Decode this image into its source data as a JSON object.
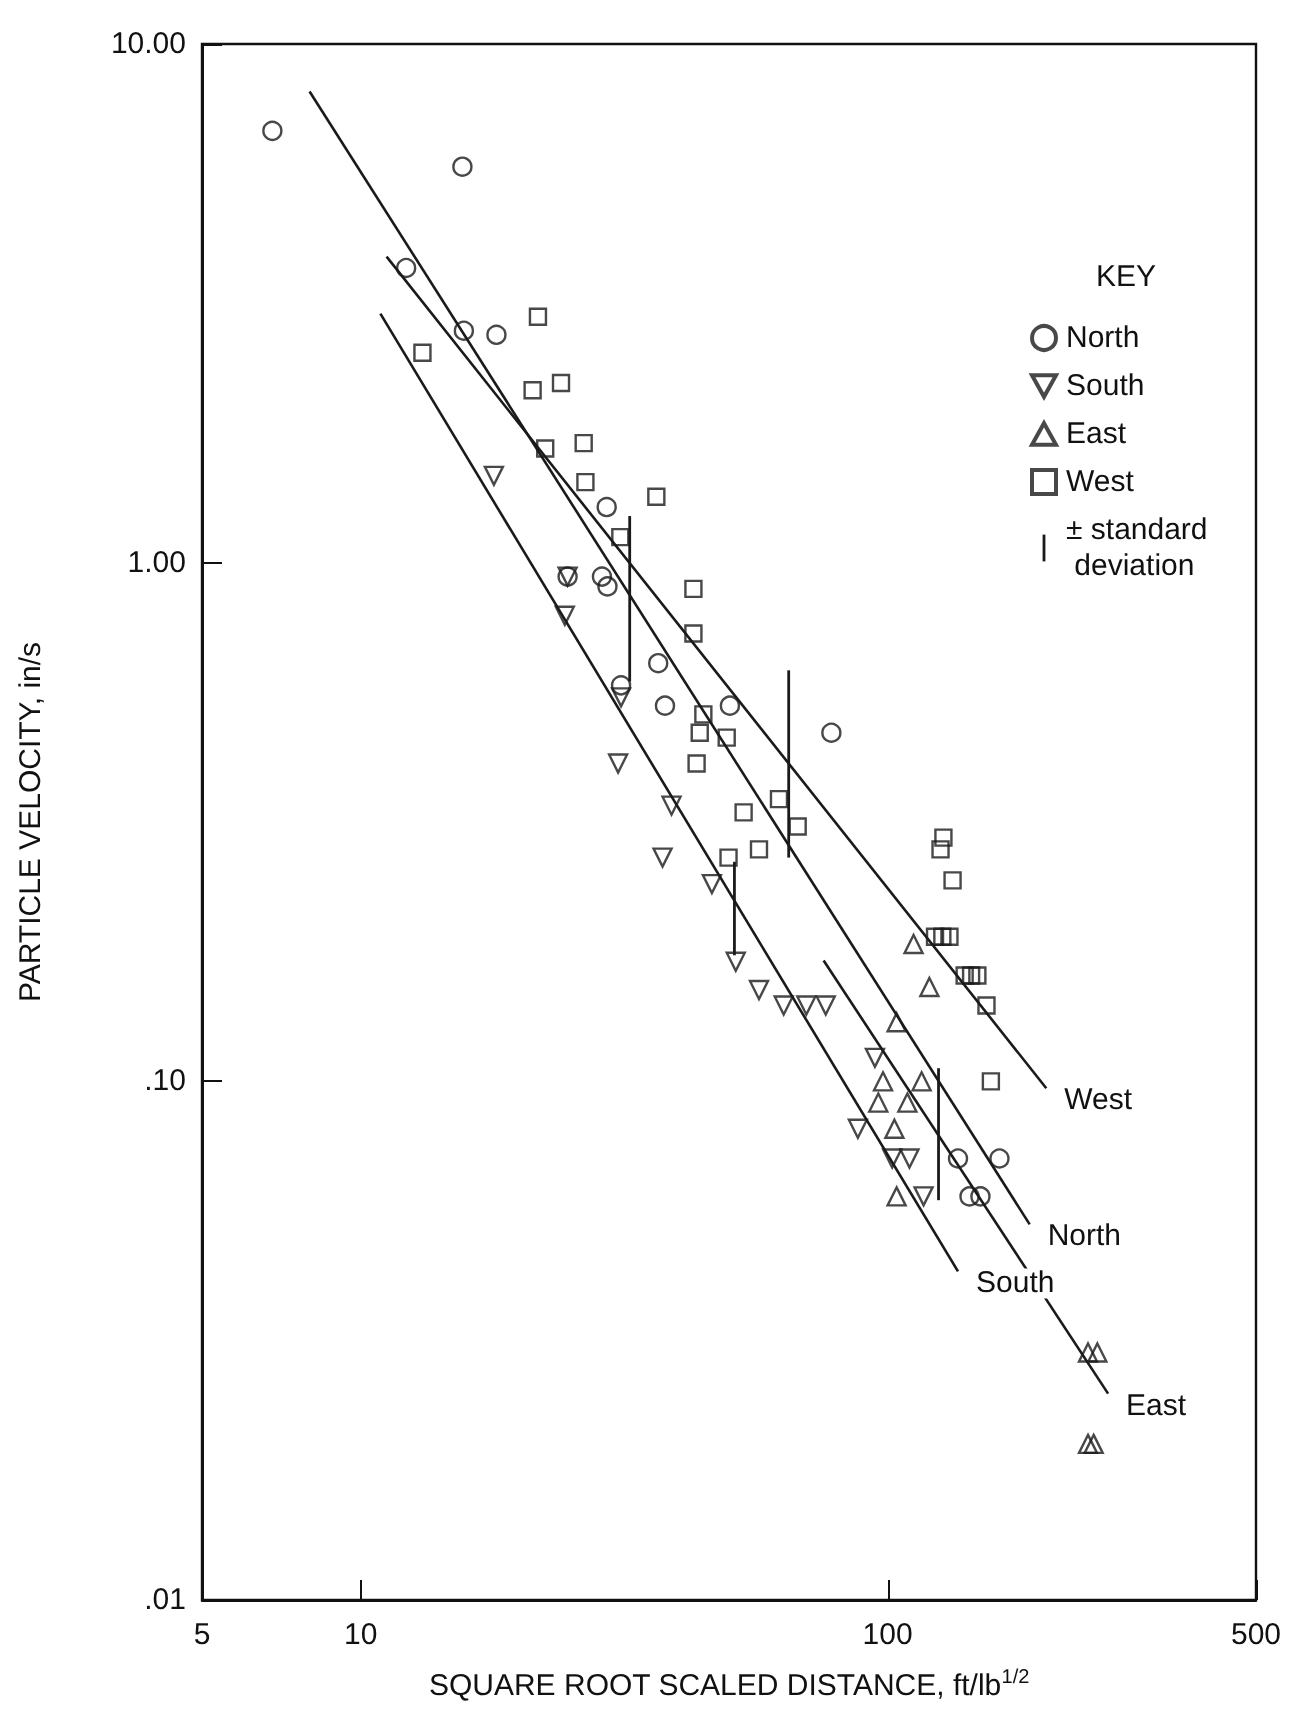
{
  "chart_data": {
    "type": "scatter",
    "xlabel": "SQUARE ROOT SCALED DISTANCE, ft/lb$^{1/2}$",
    "ylabel": "PARTICLE VELOCITY, in/s",
    "legend_title": "KEY",
    "legend": "top right",
    "log": "xy",
    "grid": false,
    "xlim": [
      5,
      500
    ],
    "xticks": [
      5,
      10,
      100,
      500
    ],
    "ylim": [
      0.01,
      10
    ],
    "yticks": [
      {
        "value": 0.01,
        "label": ".01"
      },
      {
        "value": 0.1,
        "label": ".10"
      },
      {
        "value": 1,
        "label": "1.00"
      },
      {
        "value": 10,
        "label": "10.00"
      }
    ],
    "series": [
      {
        "name": "North",
        "marker": "circle",
        "color": "#1a1a1a",
        "x": [
          6.8,
          15.6,
          12.2,
          15.7,
          18.1,
          29.3,
          24.7,
          28.7,
          29.4,
          36.7,
          31.2,
          37.8,
          50.2,
          78.2,
          136,
          163,
          143,
          150
        ],
        "values": [
          6.8,
          5.8,
          3.7,
          2.8,
          2.75,
          1.28,
          0.94,
          0.94,
          0.9,
          0.64,
          0.58,
          0.53,
          0.53,
          0.47,
          0.071,
          0.071,
          0.06,
          0.06
        ]
      },
      {
        "name": "South",
        "marker": "triangle-down",
        "color": "#1a1a1a",
        "x": [
          17.9,
          24.7,
          24.4,
          31.2,
          30.8,
          38.9,
          37.4,
          46.4,
          51.5,
          57,
          63.5,
          70.1,
          76.3,
          94.6,
          87.8,
          102,
          110,
          117
        ],
        "values": [
          1.47,
          0.94,
          0.79,
          0.55,
          0.41,
          0.34,
          0.27,
          0.24,
          0.17,
          0.15,
          0.14,
          0.14,
          0.14,
          0.111,
          0.081,
          0.071,
          0.071,
          0.06
        ]
      },
      {
        "name": "East",
        "marker": "triangle",
        "color": "#1a1a1a",
        "x": [
          112,
          120,
          104,
          116,
          98,
          96,
          109,
          103,
          104,
          240,
          250,
          240,
          246
        ],
        "values": [
          0.184,
          0.152,
          0.13,
          0.1,
          0.1,
          0.091,
          0.091,
          0.081,
          0.06,
          0.03,
          0.03,
          0.02,
          0.02
        ]
      },
      {
        "name": "West",
        "marker": "square",
        "color": "#1a1a1a",
        "x": [
          21.7,
          13.1,
          21.2,
          24,
          22.4,
          26.5,
          26.7,
          36.4,
          31.1,
          42.8,
          42.8,
          44.7,
          44,
          49.5,
          43.4,
          62.2,
          53.3,
          67.5,
          57,
          49.9,
          127.6,
          126,
          132.8,
          123,
          127,
          131,
          140,
          144,
          148,
          154,
          157
        ],
        "values": [
          2.98,
          2.54,
          2.15,
          2.22,
          1.66,
          1.7,
          1.43,
          1.34,
          1.12,
          0.89,
          0.73,
          0.51,
          0.47,
          0.46,
          0.41,
          0.35,
          0.33,
          0.31,
          0.28,
          0.27,
          0.295,
          0.28,
          0.244,
          0.19,
          0.19,
          0.19,
          0.16,
          0.16,
          0.16,
          0.14,
          0.1
        ]
      },
      {
        "name": "± standard deviation",
        "type": "bar",
        "color": "#1a1a1a",
        "x": [
          32.4,
          51.2,
          64.9,
          124.9
        ],
        "base": [
          0.59,
          0.175,
          0.27,
          0.059
        ],
        "values": [
          0.64,
          0.09,
          0.35,
          0.047
        ]
      },
      {
        "name": "West",
        "type": "line",
        "marker": "none",
        "color": "#1a1a1a",
        "x": [
          11.2,
          200
        ],
        "values": [
          3.89,
          0.097
        ]
      },
      {
        "name": "North",
        "type": "line",
        "marker": "none",
        "color": "#1a1a1a",
        "x": [
          8,
          186
        ],
        "values": [
          8.1,
          0.053
        ]
      },
      {
        "name": "South",
        "type": "line",
        "marker": "none",
        "color": "#1a1a1a",
        "x": [
          10.9,
          136
        ],
        "values": [
          3.02,
          0.043
        ]
      },
      {
        "name": "East",
        "type": "line",
        "marker": "none",
        "color": "#1a1a1a",
        "x": [
          75.6,
          262
        ],
        "values": [
          0.171,
          0.025
        ]
      }
    ]
  }
}
